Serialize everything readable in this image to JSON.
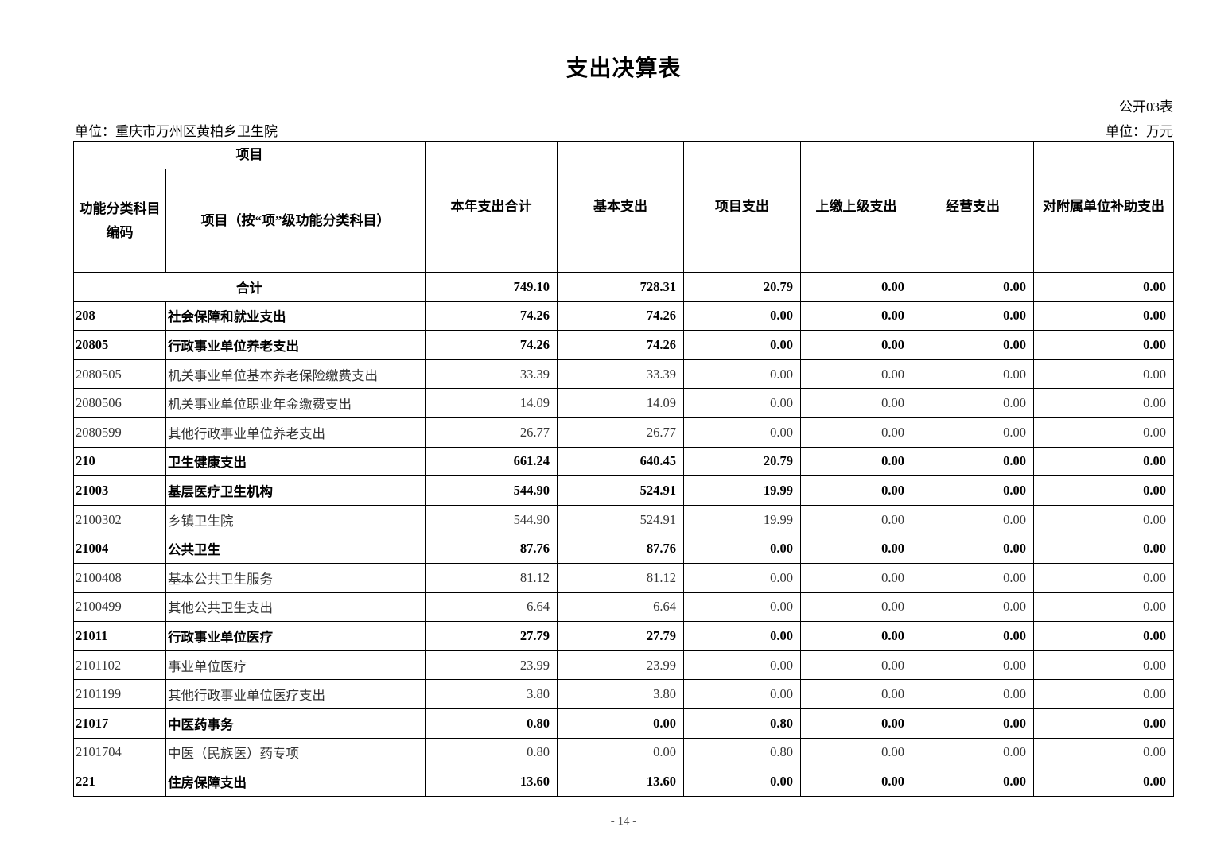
{
  "title": "支出决算表",
  "form_no": "公开03表",
  "unit_org": "单位：重庆市万州区黄柏乡卫生院",
  "unit_money": "单位：万元",
  "headers": {
    "project": "项目",
    "code": "功能分类科目编码",
    "name": "项目（按“项”级功能分类科目）",
    "cols": [
      "本年支出合计",
      "基本支出",
      "项目支出",
      "上缴上级支出",
      "经营支出",
      "对附属单位补助支出"
    ]
  },
  "total": {
    "label": "合计",
    "values": [
      "749.10",
      "728.31",
      "20.79",
      "0.00",
      "0.00",
      "0.00"
    ]
  },
  "rows": [
    {
      "code": "208",
      "name": "社会保障和就业支出",
      "bold": true,
      "values": [
        "74.26",
        "74.26",
        "0.00",
        "0.00",
        "0.00",
        "0.00"
      ]
    },
    {
      "code": "20805",
      "name": "行政事业单位养老支出",
      "bold": true,
      "values": [
        "74.26",
        "74.26",
        "0.00",
        "0.00",
        "0.00",
        "0.00"
      ]
    },
    {
      "code": "2080505",
      "name": "机关事业单位基本养老保险缴费支出",
      "bold": false,
      "values": [
        "33.39",
        "33.39",
        "0.00",
        "0.00",
        "0.00",
        "0.00"
      ]
    },
    {
      "code": "2080506",
      "name": "机关事业单位职业年金缴费支出",
      "bold": false,
      "values": [
        "14.09",
        "14.09",
        "0.00",
        "0.00",
        "0.00",
        "0.00"
      ]
    },
    {
      "code": "2080599",
      "name": "其他行政事业单位养老支出",
      "bold": false,
      "values": [
        "26.77",
        "26.77",
        "0.00",
        "0.00",
        "0.00",
        "0.00"
      ]
    },
    {
      "code": "210",
      "name": "卫生健康支出",
      "bold": true,
      "values": [
        "661.24",
        "640.45",
        "20.79",
        "0.00",
        "0.00",
        "0.00"
      ]
    },
    {
      "code": "21003",
      "name": "基层医疗卫生机构",
      "bold": true,
      "values": [
        "544.90",
        "524.91",
        "19.99",
        "0.00",
        "0.00",
        "0.00"
      ]
    },
    {
      "code": "2100302",
      "name": "乡镇卫生院",
      "bold": false,
      "values": [
        "544.90",
        "524.91",
        "19.99",
        "0.00",
        "0.00",
        "0.00"
      ]
    },
    {
      "code": "21004",
      "name": "公共卫生",
      "bold": true,
      "values": [
        "87.76",
        "87.76",
        "0.00",
        "0.00",
        "0.00",
        "0.00"
      ]
    },
    {
      "code": "2100408",
      "name": "基本公共卫生服务",
      "bold": false,
      "values": [
        "81.12",
        "81.12",
        "0.00",
        "0.00",
        "0.00",
        "0.00"
      ]
    },
    {
      "code": "2100499",
      "name": "其他公共卫生支出",
      "bold": false,
      "values": [
        "6.64",
        "6.64",
        "0.00",
        "0.00",
        "0.00",
        "0.00"
      ]
    },
    {
      "code": "21011",
      "name": "行政事业单位医疗",
      "bold": true,
      "values": [
        "27.79",
        "27.79",
        "0.00",
        "0.00",
        "0.00",
        "0.00"
      ]
    },
    {
      "code": "2101102",
      "name": "事业单位医疗",
      "bold": false,
      "values": [
        "23.99",
        "23.99",
        "0.00",
        "0.00",
        "0.00",
        "0.00"
      ]
    },
    {
      "code": "2101199",
      "name": "其他行政事业单位医疗支出",
      "bold": false,
      "values": [
        "3.80",
        "3.80",
        "0.00",
        "0.00",
        "0.00",
        "0.00"
      ]
    },
    {
      "code": "21017",
      "name": "中医药事务",
      "bold": true,
      "values": [
        "0.80",
        "0.00",
        "0.80",
        "0.00",
        "0.00",
        "0.00"
      ]
    },
    {
      "code": "2101704",
      "name": "中医（民族医）药专项",
      "bold": false,
      "values": [
        "0.80",
        "0.00",
        "0.80",
        "0.00",
        "0.00",
        "0.00"
      ]
    },
    {
      "code": "221",
      "name": "住房保障支出",
      "bold": true,
      "values": [
        "13.60",
        "13.60",
        "0.00",
        "0.00",
        "0.00",
        "0.00"
      ]
    }
  ],
  "footer": "- 14 -"
}
